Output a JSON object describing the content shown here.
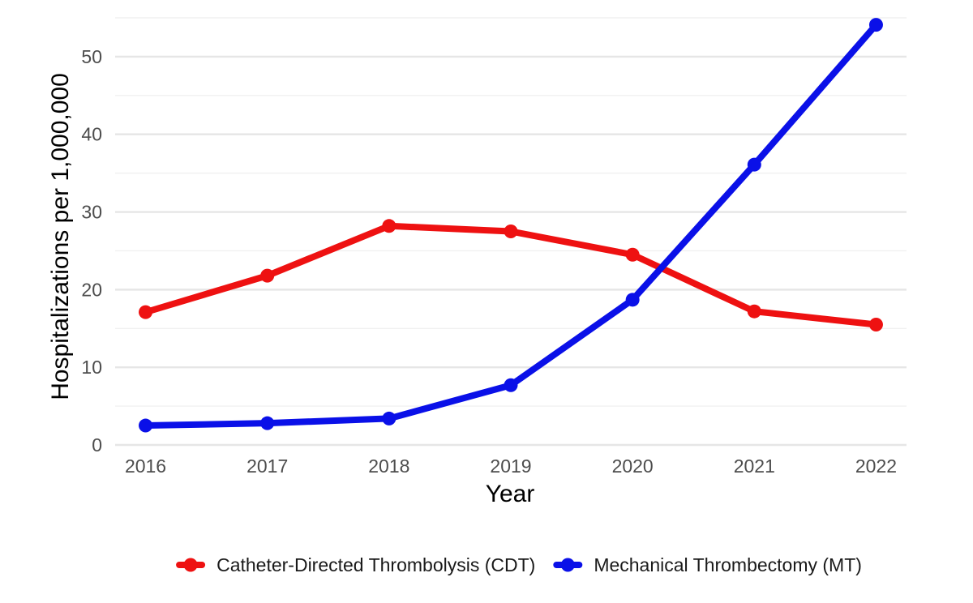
{
  "chart_data": {
    "type": "line",
    "x": [
      2016,
      2017,
      2018,
      2019,
      2020,
      2021,
      2022
    ],
    "series": [
      {
        "name": "Catheter-Directed Thrombolysis (CDT)",
        "color": "#ee1111",
        "values": [
          17.1,
          21.8,
          28.2,
          27.5,
          24.5,
          17.2,
          15.5
        ]
      },
      {
        "name": "Mechanical Thrombectomy (MT)",
        "color": "#0a10e8",
        "values": [
          2.5,
          2.8,
          3.4,
          7.7,
          18.7,
          36.1,
          54.1
        ]
      }
    ],
    "xlabel": "Year",
    "ylabel": "Hospitalizations per 1,000,000",
    "xlim": [
      2015.75,
      2022.25
    ],
    "ylim": [
      0,
      55
    ],
    "y_ticks": [
      0,
      10,
      20,
      30,
      40,
      50
    ],
    "x_tick_labels": [
      "2016",
      "2017",
      "2018",
      "2019",
      "2020",
      "2021",
      "2022"
    ],
    "y_tick_labels": [
      "0",
      "10",
      "20",
      "30",
      "40",
      "50"
    ],
    "grid": "horizontal",
    "legend_position": "bottom"
  }
}
